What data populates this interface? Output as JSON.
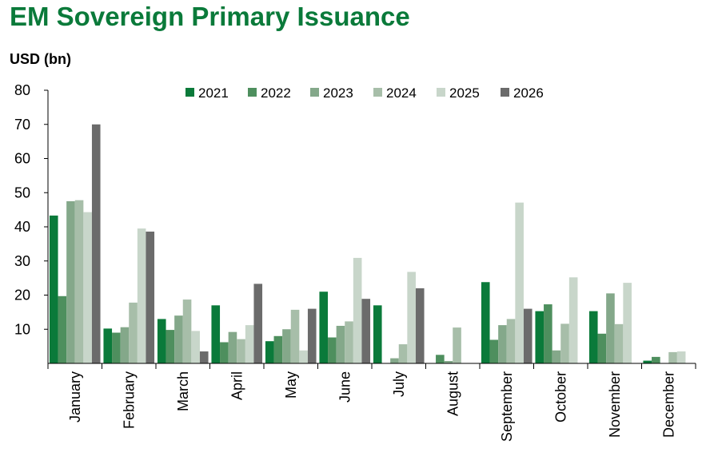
{
  "title": "EM Sovereign Primary Issuance",
  "chart_data": {
    "type": "bar",
    "title": "EM Sovereign Primary Issuance",
    "ylabel": "USD (bn)",
    "xlabel": "",
    "ylim": [
      0,
      80
    ],
    "yticks": [
      10,
      20,
      30,
      40,
      50,
      60,
      70,
      80
    ],
    "grid": false,
    "legend_position": "top",
    "categories": [
      "January",
      "February",
      "March",
      "April",
      "May",
      "June",
      "July",
      "August",
      "September",
      "October",
      "November",
      "December"
    ],
    "series": [
      {
        "name": "2021",
        "color": "#0a7a3a",
        "values": [
          43.3,
          10.2,
          13.0,
          17.0,
          6.5,
          21.0,
          17.0,
          0,
          23.8,
          15.3,
          15.3,
          0.8
        ]
      },
      {
        "name": "2022",
        "color": "#4e8f5e",
        "values": [
          19.7,
          9.0,
          9.8,
          6.2,
          8.0,
          7.6,
          0,
          2.5,
          6.9,
          17.3,
          8.7,
          1.9
        ]
      },
      {
        "name": "2023",
        "color": "#84a88a",
        "values": [
          47.5,
          10.6,
          14.0,
          9.2,
          10.0,
          11.0,
          1.5,
          0.7,
          11.2,
          3.8,
          20.5,
          0
        ]
      },
      {
        "name": "2024",
        "color": "#a7bea9",
        "values": [
          47.8,
          17.8,
          18.7,
          7.1,
          15.7,
          12.3,
          5.6,
          10.5,
          13.0,
          11.6,
          11.5,
          3.3
        ]
      },
      {
        "name": "2025",
        "color": "#c8d6ca",
        "values": [
          44.3,
          39.5,
          9.5,
          11.2,
          3.8,
          30.9,
          26.8,
          0,
          47.1,
          25.2,
          23.6,
          3.5
        ]
      },
      {
        "name": "2026",
        "color": "#6b6b6b",
        "values": [
          70.0,
          38.6,
          3.5,
          23.3,
          16.0,
          18.9,
          22.0,
          0,
          16.0,
          0,
          0,
          0
        ]
      }
    ]
  }
}
